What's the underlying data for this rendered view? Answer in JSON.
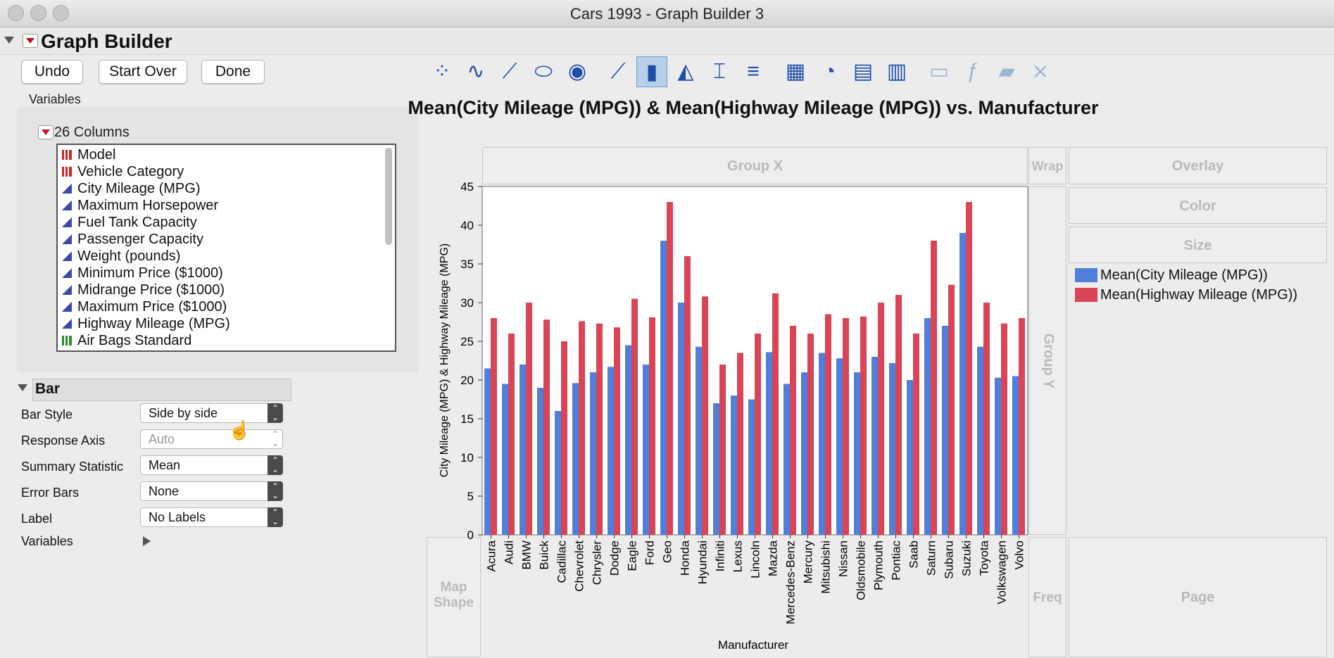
{
  "window": {
    "title": "Cars 1993 - Graph Builder 3"
  },
  "header": {
    "title": "Graph Builder"
  },
  "buttons": {
    "undo": "Undo",
    "start_over": "Start Over",
    "done": "Done"
  },
  "variables_panel": {
    "label": "Variables",
    "columns_header": "26 Columns",
    "columns": [
      {
        "name": "Model",
        "type": "nominal"
      },
      {
        "name": "Vehicle Category",
        "type": "nominal"
      },
      {
        "name": "City Mileage (MPG)",
        "type": "continuous"
      },
      {
        "name": "Maximum Horsepower",
        "type": "continuous"
      },
      {
        "name": "Fuel Tank Capacity",
        "type": "continuous"
      },
      {
        "name": "Passenger Capacity",
        "type": "continuous"
      },
      {
        "name": "Weight (pounds)",
        "type": "continuous"
      },
      {
        "name": "Minimum Price ($1000)",
        "type": "continuous"
      },
      {
        "name": "Midrange Price ($1000)",
        "type": "continuous"
      },
      {
        "name": "Maximum Price ($1000)",
        "type": "continuous"
      },
      {
        "name": "Highway Mileage (MPG)",
        "type": "continuous"
      },
      {
        "name": "Air Bags Standard",
        "type": "ordinal"
      }
    ]
  },
  "bar_section": {
    "title": "Bar",
    "bar_style_label": "Bar Style",
    "bar_style_value": "Side by side",
    "response_axis_label": "Response Axis",
    "response_axis_value": "Auto",
    "summary_stat_label": "Summary Statistic",
    "summary_stat_value": "Mean",
    "error_bars_label": "Error Bars",
    "error_bars_value": "None",
    "label_label": "Label",
    "label_value": "No Labels",
    "variables_label": "Variables"
  },
  "toolbar": {
    "icons": [
      "points-icon",
      "smoother-icon",
      "line-of-fit-icon",
      "ellipse-icon",
      "contour-icon",
      "line-icon",
      "bar-icon",
      "area-icon",
      "box-plot-icon",
      "histogram-icon",
      "heatmap-icon",
      "pie-icon",
      "treemap-icon",
      "mosaic-icon",
      "caption-box-icon",
      "formula-icon",
      "map-shapes-icon",
      "parallel-icon"
    ],
    "selected": "bar-icon"
  },
  "drop_zones": {
    "group_x": "Group X",
    "wrap": "Wrap",
    "overlay": "Overlay",
    "color": "Color",
    "size": "Size",
    "group_y": "Group Y",
    "map_shape": "Map Shape",
    "freq": "Freq",
    "page": "Page"
  },
  "colors": {
    "city": "#4f7fdb",
    "highway": "#da4457"
  },
  "chart_data": {
    "type": "bar",
    "title": "Mean(City Mileage (MPG)) & Mean(Highway Mileage (MPG)) vs. Manufacturer",
    "xlabel": "Manufacturer",
    "ylabel": "City Mileage (MPG) & Highway Mileage (MPG)",
    "ylim": [
      0,
      45
    ],
    "yticks": [
      0,
      5,
      10,
      15,
      20,
      25,
      30,
      35,
      40,
      45
    ],
    "categories": [
      "Acura",
      "Audi",
      "BMW",
      "Buick",
      "Cadillac",
      "Chevrolet",
      "Chrysler",
      "Dodge",
      "Eagle",
      "Ford",
      "Geo",
      "Honda",
      "Hyundai",
      "Infiniti",
      "Lexus",
      "Lincoln",
      "Mazda",
      "Mercedes-Benz",
      "Mercury",
      "Mitsubishi",
      "Nissan",
      "Oldsmobile",
      "Plymouth",
      "Pontiac",
      "Saab",
      "Saturn",
      "Subaru",
      "Suzuki",
      "Toyota",
      "Volkswagen",
      "Volvo"
    ],
    "series": [
      {
        "name": "Mean(City Mileage (MPG))",
        "values": [
          21.5,
          19.5,
          22,
          19,
          16,
          19.6,
          21,
          21.7,
          24.5,
          22,
          38,
          30,
          24.3,
          17,
          18,
          17.5,
          23.6,
          19.5,
          21,
          23.5,
          22.8,
          21,
          23,
          22.2,
          20,
          28,
          27,
          39,
          24.3,
          20.3,
          20.5
        ]
      },
      {
        "name": "Mean(Highway Mileage (MPG))",
        "values": [
          28,
          26,
          30,
          27.8,
          25,
          27.6,
          27.3,
          26.8,
          30.5,
          28.1,
          43,
          36,
          30.8,
          22,
          23.5,
          26,
          31.2,
          27,
          26,
          28.5,
          28,
          28.2,
          30,
          31,
          26,
          38,
          32.3,
          43,
          30,
          27.3,
          28
        ]
      }
    ],
    "legend_position": "right"
  }
}
